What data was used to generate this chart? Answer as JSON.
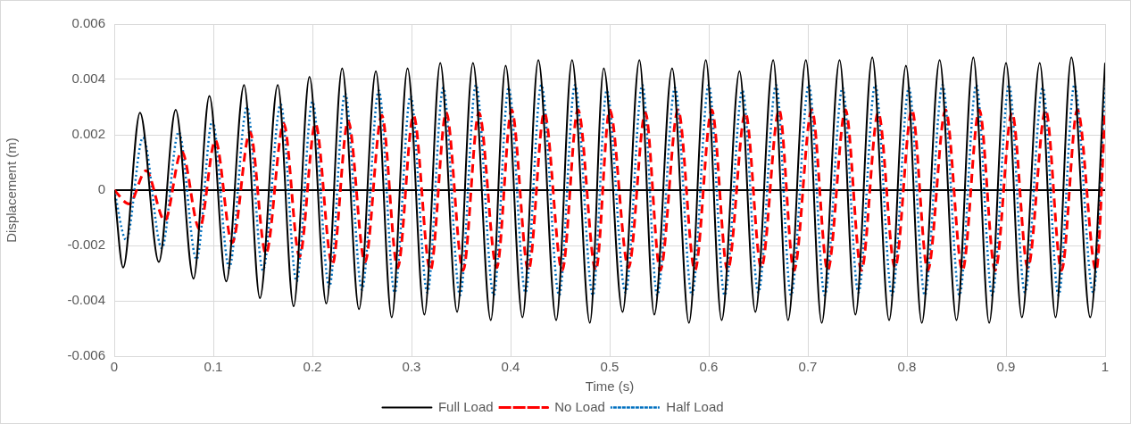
{
  "chart_data": {
    "type": "line",
    "xlabel": "Time (s)",
    "ylabel": "Displacement (m)",
    "xlim": [
      0,
      1
    ],
    "xticks": [
      0,
      0.1,
      0.2,
      0.3,
      0.4,
      0.5,
      0.6,
      0.7,
      0.8,
      0.9,
      1
    ],
    "ylim": [
      -0.006,
      0.006
    ],
    "yticks": [
      -0.006,
      -0.004,
      -0.002,
      0,
      0.002,
      0.004,
      0.006
    ],
    "grid": true,
    "legend": "bottom",
    "marker": "none",
    "series": [
      {
        "name": "Full Load",
        "color": "#000000",
        "line_style": "solid",
        "x": [
          0,
          0.009,
          0.026,
          0.045,
          0.062,
          0.08,
          0.096,
          0.113,
          0.131,
          0.147,
          0.165,
          0.181,
          0.197,
          0.214,
          0.23,
          0.247,
          0.264,
          0.28,
          0.296,
          0.313,
          0.329,
          0.346,
          0.362,
          0.38,
          0.395,
          0.412,
          0.428,
          0.446,
          0.462,
          0.48,
          0.494,
          0.513,
          0.53,
          0.545,
          0.563,
          0.58,
          0.597,
          0.613,
          0.631,
          0.647,
          0.665,
          0.68,
          0.698,
          0.714,
          0.732,
          0.748,
          0.765,
          0.782,
          0.799,
          0.815,
          0.833,
          0.85,
          0.867,
          0.883,
          0.9,
          0.916,
          0.934,
          0.95,
          0.966,
          0.985,
          1
        ],
        "values": [
          0,
          -0.0028,
          0.0028,
          -0.0026,
          0.0029,
          -0.0032,
          0.0034,
          -0.0033,
          0.0038,
          -0.0039,
          0.0038,
          -0.0042,
          0.0041,
          -0.0041,
          0.0044,
          -0.0043,
          0.0043,
          -0.0046,
          0.0044,
          -0.0045,
          0.0046,
          -0.0044,
          0.0046,
          -0.0047,
          0.0045,
          -0.0046,
          0.0047,
          -0.0047,
          0.0047,
          -0.0048,
          0.0044,
          -0.0044,
          0.0047,
          -0.0045,
          0.0044,
          -0.0048,
          0.0047,
          -0.0047,
          0.0043,
          -0.0044,
          0.0047,
          -0.0047,
          0.0047,
          -0.0048,
          0.0047,
          -0.0045,
          0.0048,
          -0.0047,
          0.0045,
          -0.0048,
          0.0047,
          -0.0047,
          0.0048,
          -0.0048,
          0.0046,
          -0.0046,
          0.0046,
          -0.0046,
          0.0048,
          -0.0046,
          0.0046
        ]
      },
      {
        "name": "No Load",
        "color": "#ff0000",
        "line_style": "dashed",
        "x": [
          0,
          0.015,
          0.032,
          0.051,
          0.068,
          0.086,
          0.102,
          0.119,
          0.137,
          0.153,
          0.171,
          0.187,
          0.203,
          0.22,
          0.236,
          0.253,
          0.27,
          0.286,
          0.302,
          0.319,
          0.335,
          0.352,
          0.368,
          0.386,
          0.401,
          0.418,
          0.434,
          0.452,
          0.468,
          0.486,
          0.5,
          0.519,
          0.536,
          0.551,
          0.569,
          0.586,
          0.603,
          0.619,
          0.637,
          0.653,
          0.671,
          0.686,
          0.704,
          0.72,
          0.738,
          0.754,
          0.771,
          0.788,
          0.805,
          0.821,
          0.839,
          0.856,
          0.873,
          0.889,
          0.906,
          0.922,
          0.94,
          0.956,
          0.972,
          0.991,
          1
        ],
        "values": [
          0,
          -0.0005,
          0.0007,
          -0.0011,
          0.0014,
          -0.0014,
          0.0018,
          -0.0019,
          0.0021,
          -0.0023,
          0.0024,
          -0.0024,
          0.0024,
          -0.0027,
          0.0025,
          -0.0026,
          0.0027,
          -0.0028,
          0.0027,
          -0.0029,
          0.0028,
          -0.0029,
          0.0028,
          -0.0028,
          0.0029,
          -0.0029,
          0.0028,
          -0.0029,
          0.0029,
          -0.0029,
          0.0029,
          -0.0028,
          0.0028,
          -0.0029,
          0.0029,
          -0.0029,
          0.0029,
          -0.0029,
          0.0028,
          -0.0028,
          0.0029,
          -0.0029,
          0.0029,
          -0.0029,
          0.0029,
          -0.0029,
          0.0028,
          -0.0028,
          0.0029,
          -0.0029,
          0.0029,
          -0.0029,
          0.0029,
          -0.0029,
          0.0028,
          -0.0028,
          0.0029,
          -0.0029,
          0.0029,
          -0.0029,
          0.0029
        ]
      },
      {
        "name": "Half Load",
        "color": "#0070c0",
        "line_style": "dotted",
        "x": [
          0,
          0.012,
          0.029,
          0.048,
          0.065,
          0.083,
          0.099,
          0.116,
          0.134,
          0.15,
          0.168,
          0.184,
          0.2,
          0.217,
          0.233,
          0.25,
          0.267,
          0.283,
          0.299,
          0.316,
          0.332,
          0.349,
          0.365,
          0.383,
          0.398,
          0.415,
          0.431,
          0.449,
          0.465,
          0.483,
          0.497,
          0.516,
          0.533,
          0.548,
          0.566,
          0.583,
          0.6,
          0.616,
          0.634,
          0.65,
          0.668,
          0.683,
          0.701,
          0.717,
          0.735,
          0.751,
          0.768,
          0.785,
          0.802,
          0.818,
          0.836,
          0.853,
          0.87,
          0.886,
          0.903,
          0.919,
          0.937,
          0.953,
          0.969,
          0.988,
          1
        ],
        "values": [
          0,
          -0.0018,
          0.0019,
          -0.0021,
          0.0021,
          -0.0025,
          0.0025,
          -0.0028,
          0.003,
          -0.0029,
          0.0031,
          -0.0033,
          0.0032,
          -0.0035,
          0.0035,
          -0.0036,
          0.0036,
          -0.0037,
          0.0034,
          -0.0037,
          0.0037,
          -0.0038,
          0.0038,
          -0.0038,
          0.0037,
          -0.0037,
          0.0038,
          -0.0038,
          0.0038,
          -0.0038,
          0.0036,
          -0.0037,
          0.0038,
          -0.0038,
          0.0037,
          -0.0038,
          0.0038,
          -0.0038,
          0.0036,
          -0.0037,
          0.0038,
          -0.0038,
          0.0038,
          -0.0038,
          0.0037,
          -0.0037,
          0.0038,
          -0.0038,
          0.0037,
          -0.0038,
          0.0038,
          -0.0038,
          0.0038,
          -0.0038,
          0.0038,
          -0.0037,
          0.0037,
          -0.0038,
          0.0038,
          -0.0037,
          0.0038
        ]
      }
    ]
  }
}
